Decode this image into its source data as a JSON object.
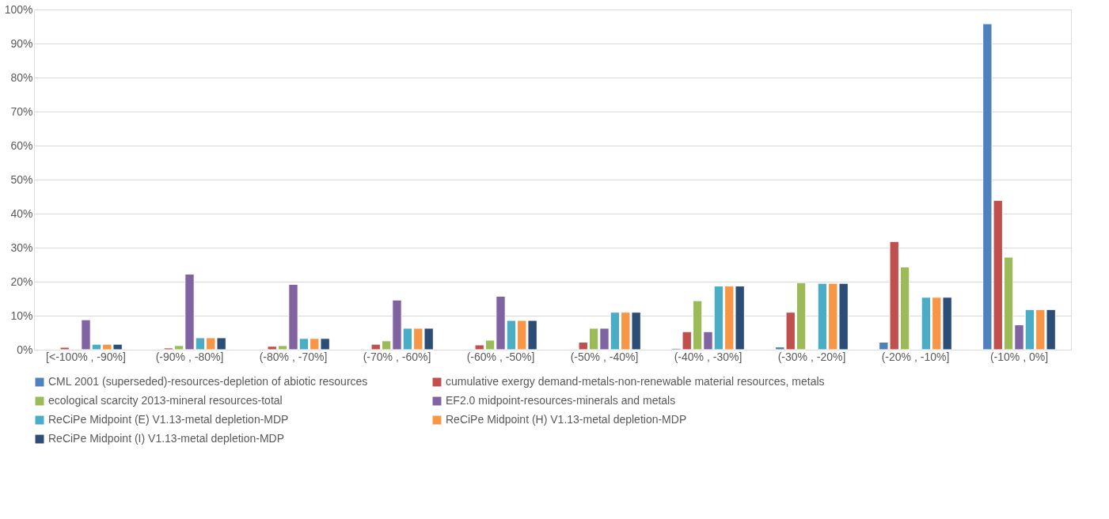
{
  "chart_data": {
    "type": "bar",
    "categories": [
      "[<-100% , -90%]",
      "(-90% , -80%]",
      "(-80% , -70%]",
      "(-70% , -60%]",
      "(-60% , -50%]",
      "(-50% , -40%]",
      "(-40% , -30%]",
      "(-30% , -20%]",
      "(-20% , -10%]",
      "(-10% , 0%]"
    ],
    "series": [
      {
        "name": "CML 2001 (superseded)-resources-depletion of abiotic resources",
        "color": "#4f81bd",
        "values": [
          0,
          0,
          0,
          0,
          0,
          0,
          0.4,
          0.8,
          2.2,
          95.8
        ]
      },
      {
        "name": "cumulative exergy demand-metals-non-renewable material resources, metals",
        "color": "#c0504d",
        "values": [
          0.7,
          0.5,
          1.0,
          1.6,
          1.4,
          2.2,
          5.3,
          11.0,
          31.8,
          43.9
        ]
      },
      {
        "name": "ecological scarcity 2013-mineral resources-total",
        "color": "#9bbb59",
        "values": [
          0,
          1.2,
          1.2,
          2.6,
          2.8,
          6.3,
          14.4,
          19.7,
          24.3,
          27.2
        ]
      },
      {
        "name": "EF2.0 midpoint-resources-minerals and metals",
        "color": "#8064a2",
        "values": [
          8.8,
          22.2,
          19.2,
          14.6,
          15.7,
          6.3,
          5.3,
          0,
          0,
          7.3
        ]
      },
      {
        "name": "ReCiPe Midpoint (E) V1.13-metal depletion-MDP",
        "color": "#4bacc6",
        "values": [
          1.6,
          3.5,
          3.3,
          6.3,
          8.6,
          11.0,
          18.7,
          19.5,
          15.4,
          11.8
        ]
      },
      {
        "name": "ReCiPe Midpoint (H) V1.13-metal depletion-MDP",
        "color": "#f79646",
        "values": [
          1.6,
          3.5,
          3.3,
          6.3,
          8.6,
          11.0,
          18.7,
          19.5,
          15.4,
          11.8
        ]
      },
      {
        "name": "ReCiPe Midpoint (I) V1.13-metal depletion-MDP",
        "color": "#2c4d75",
        "values": [
          1.6,
          3.5,
          3.3,
          6.3,
          8.6,
          11.0,
          18.7,
          19.5,
          15.4,
          11.8
        ]
      }
    ],
    "ylim": [
      0,
      100
    ],
    "yticks": [
      {
        "value": 0,
        "label": "0%"
      },
      {
        "value": 10,
        "label": "10%"
      },
      {
        "value": 20,
        "label": "20%"
      },
      {
        "value": 30,
        "label": "30%"
      },
      {
        "value": 40,
        "label": "40%"
      },
      {
        "value": 50,
        "label": "50%"
      },
      {
        "value": 60,
        "label": "60%"
      },
      {
        "value": 70,
        "label": "70%"
      },
      {
        "value": 80,
        "label": "80%"
      },
      {
        "value": 90,
        "label": "90%"
      },
      {
        "value": 100,
        "label": "100%"
      }
    ],
    "grid": "y",
    "legend": "bottom"
  }
}
